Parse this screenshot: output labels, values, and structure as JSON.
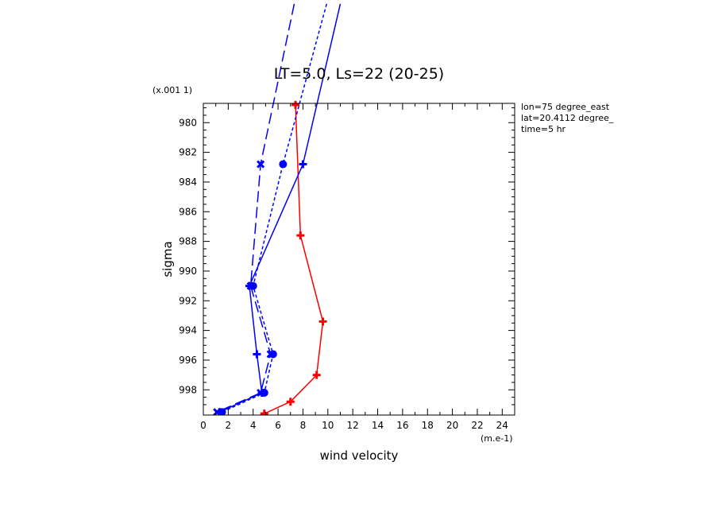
{
  "chart_data": {
    "type": "line",
    "title": "LT=5.0, Ls=22 (20-25)",
    "xlabel": "wind velocity",
    "ylabel": "sigma",
    "x_scale_note": "(m.e-1)",
    "y_scale_note": "(x.001 1)",
    "xlim": [
      0,
      25
    ],
    "ylim": [
      999.7,
      978.7
    ],
    "x_ticks": [
      0,
      2,
      4,
      6,
      8,
      10,
      12,
      14,
      16,
      18,
      20,
      22,
      24
    ],
    "y_ticks": [
      980,
      982,
      984,
      986,
      988,
      990,
      992,
      994,
      996,
      998
    ],
    "annotations": [
      "lon=75 degree_east",
      "lat=20.4112 degree_",
      "time=5 hr"
    ],
    "series": [
      {
        "color": "#ff0000",
        "dash": "solid",
        "marker": "plus",
        "points": [
          [
            7.4,
            978.8
          ],
          [
            7.8,
            987.6
          ],
          [
            9.6,
            993.4
          ],
          [
            9.1,
            997.0
          ],
          [
            7.0,
            998.8
          ],
          [
            4.9,
            999.6
          ]
        ]
      },
      {
        "color": "#0000ff",
        "dash": "solid",
        "marker": "plus",
        "points": [
          [
            11.0,
            972.0
          ],
          [
            8.0,
            982.8
          ],
          [
            3.7,
            991.0
          ],
          [
            4.3,
            995.6
          ],
          [
            4.7,
            998.2
          ],
          [
            1.3,
            999.5
          ]
        ]
      },
      {
        "color": "#0000ff",
        "dash": "dot",
        "marker": "circle",
        "points": [
          [
            9.9,
            972.0
          ],
          [
            6.4,
            982.8
          ],
          [
            4.0,
            991.0
          ],
          [
            5.6,
            995.6
          ],
          [
            4.9,
            998.2
          ],
          [
            1.5,
            999.5
          ]
        ]
      },
      {
        "color": "#0000ff",
        "dash": "dash",
        "marker": "x",
        "points": [
          [
            7.3,
            972.0
          ],
          [
            4.6,
            982.8
          ],
          [
            3.8,
            991.0
          ],
          [
            5.4,
            995.6
          ],
          [
            4.6,
            998.2
          ],
          [
            1.1,
            999.5
          ]
        ]
      }
    ]
  }
}
